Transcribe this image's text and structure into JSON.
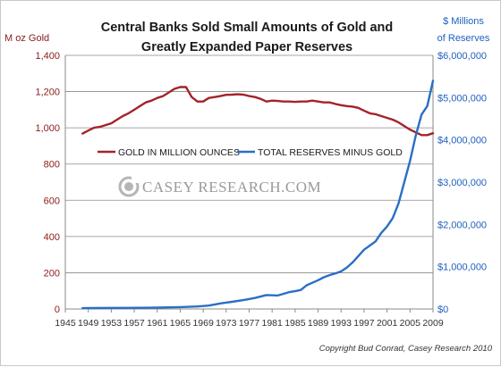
{
  "chart_data": {
    "type": "line",
    "title_lines": [
      "Central Banks Sold Small Amounts of Gold and",
      "Greatly Expanded Paper Reserves"
    ],
    "y_left": {
      "label": "M oz Gold",
      "lim": [
        0,
        1400
      ],
      "ticks": [
        "0",
        "200",
        "400",
        "600",
        "800",
        "1,000",
        "1,200",
        "1,400"
      ]
    },
    "y_right": {
      "label_lines": [
        "$ Millions",
        "of Reserves"
      ],
      "lim": [
        0,
        6000000
      ],
      "ticks": [
        "$0",
        "$1,000,000",
        "$2,000,000",
        "$3,000,000",
        "$4,000,000",
        "$5,000,000",
        "$6,000,000"
      ]
    },
    "x": {
      "lim": [
        1945,
        2009
      ],
      "ticks": [
        "1945",
        "1949",
        "1953",
        "1957",
        "1961",
        "1965",
        "1969",
        "1973",
        "1977",
        "1981",
        "1985",
        "1989",
        "1993",
        "1997",
        "2001",
        "2005",
        "2009"
      ]
    },
    "grid": "horizontal",
    "legend_position": "center",
    "series": [
      {
        "name": "GOLD IN MILLION OUNCES",
        "axis": "left",
        "color": "#a3232a",
        "x": [
          1948,
          1949,
          1950,
          1951,
          1952,
          1953,
          1954,
          1955,
          1956,
          1957,
          1958,
          1959,
          1960,
          1961,
          1962,
          1963,
          1964,
          1965,
          1966,
          1967,
          1968,
          1969,
          1970,
          1971,
          1972,
          1973,
          1974,
          1975,
          1976,
          1977,
          1978,
          1979,
          1980,
          1981,
          1982,
          1983,
          1984,
          1985,
          1986,
          1987,
          1988,
          1989,
          1990,
          1991,
          1992,
          1993,
          1994,
          1995,
          1996,
          1997,
          1998,
          1999,
          2000,
          2001,
          2002,
          2003,
          2004,
          2005,
          2006,
          2007,
          2008,
          2009
        ],
        "values": [
          968,
          985,
          1000,
          1005,
          1015,
          1025,
          1045,
          1065,
          1080,
          1100,
          1120,
          1140,
          1150,
          1165,
          1175,
          1195,
          1215,
          1225,
          1225,
          1170,
          1145,
          1145,
          1165,
          1170,
          1175,
          1182,
          1183,
          1185,
          1183,
          1175,
          1170,
          1160,
          1145,
          1150,
          1148,
          1145,
          1145,
          1143,
          1145,
          1145,
          1150,
          1145,
          1140,
          1140,
          1132,
          1125,
          1120,
          1117,
          1110,
          1095,
          1080,
          1075,
          1065,
          1055,
          1045,
          1030,
          1010,
          990,
          975,
          960,
          960,
          970
        ]
      },
      {
        "name": "TOTAL RESERVES MINUS GOLD",
        "axis": "right",
        "color": "#2a6fc4",
        "x": [
          1948,
          1950,
          1955,
          1960,
          1965,
          1968,
          1970,
          1972,
          1974,
          1976,
          1978,
          1980,
          1982,
          1984,
          1985,
          1986,
          1987,
          1988,
          1989,
          1990,
          1991,
          1992,
          1993,
          1994,
          1995,
          1996,
          1997,
          1998,
          1999,
          2000,
          2001,
          2002,
          2003,
          2004,
          2005,
          2006,
          2007,
          2008,
          2009
        ],
        "values": [
          20000,
          22000,
          25000,
          30000,
          45000,
          60000,
          80000,
          130000,
          170000,
          210000,
          260000,
          330000,
          320000,
          400000,
          420000,
          450000,
          560000,
          620000,
          680000,
          750000,
          800000,
          840000,
          890000,
          980000,
          1100000,
          1250000,
          1400000,
          1500000,
          1600000,
          1800000,
          1950000,
          2150000,
          2500000,
          3000000,
          3500000,
          4100000,
          4600000,
          4800000,
          5400000
        ]
      }
    ]
  },
  "watermark": "CASEY RESEARCH.COM",
  "copyright": "Copyright Bud Conrad, Casey Research 2010"
}
